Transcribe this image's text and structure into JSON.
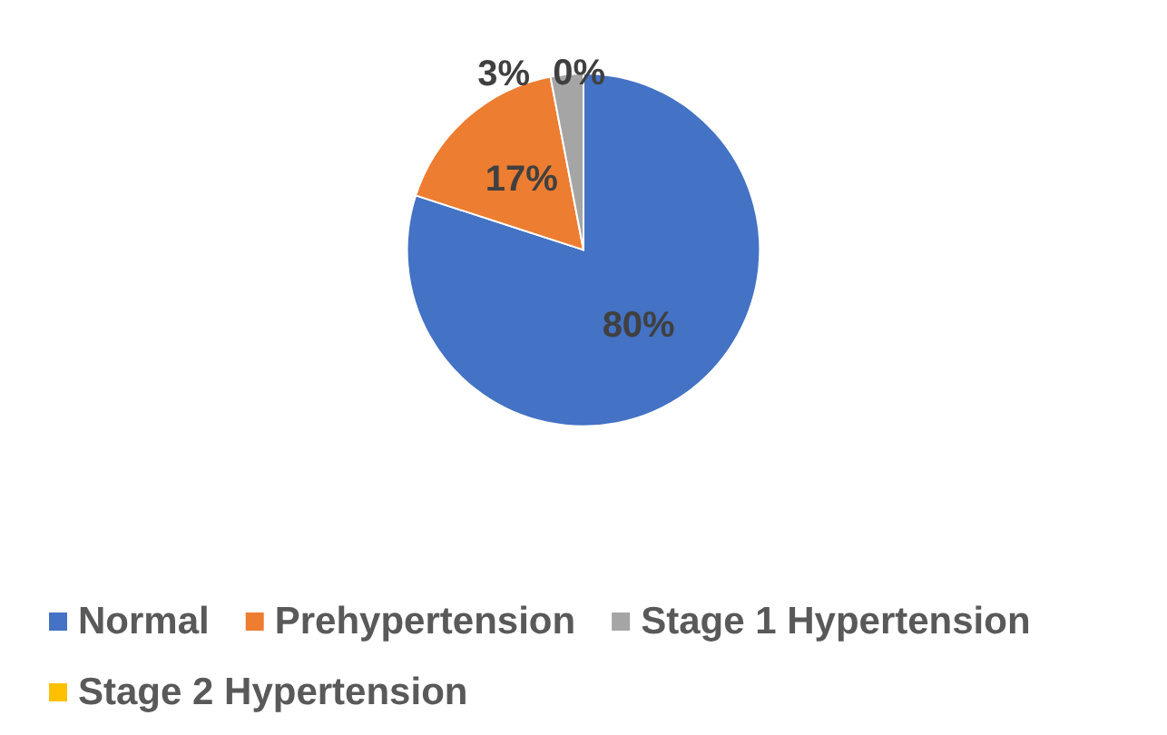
{
  "chart_data": {
    "type": "pie",
    "categories": [
      "Normal",
      "Prehypertension",
      "Stage 1 Hypertension",
      "Stage 2 Hypertension"
    ],
    "values": [
      80,
      17,
      3,
      0
    ],
    "colors": [
      "#4472c4",
      "#ed7d31",
      "#a5a5a5",
      "#ffc000"
    ],
    "value_labels": [
      "80%",
      "17%",
      "3%",
      "0%"
    ],
    "legend": "bottom"
  }
}
